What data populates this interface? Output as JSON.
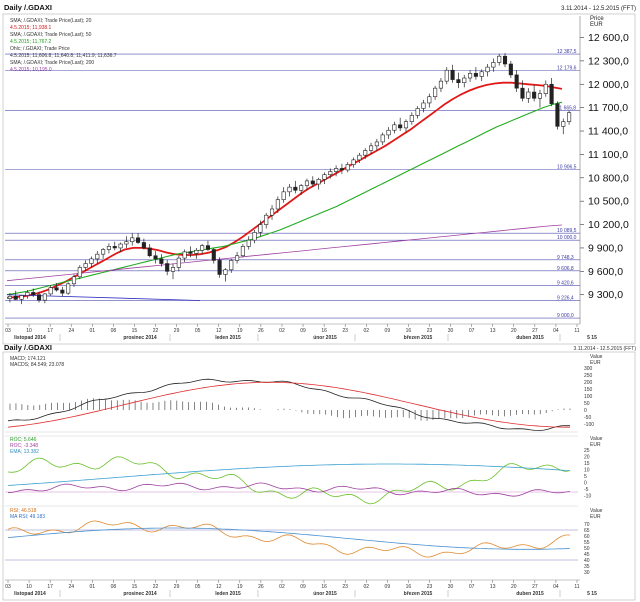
{
  "header": {
    "title": "Daily /.GDAXI",
    "range": "3.11.2014 - 12.5.2015 (FFT)",
    "price_label": "Price",
    "currency": "EUR",
    "indicator_title": "Daily /.GDAXI",
    "indicator_range": "3.11.2014 - 12.5.2015 (FFT)"
  },
  "legend": {
    "sma20_name": "SMA; /.GDAXI; Trade Price(Last); 20",
    "sma20_val": "4.5.2015; 11,938.1",
    "sma50_name": "SMA; /.GDAXI; Trade Price(Last); 50",
    "sma50_val": "4.5.2015; 11,767.2",
    "ohlc_name": "Ohlc; /.GDAXI; Trade Price",
    "ohlc_val": "4.5.2015; 11,606.8; 11,640.8; 11,411.9; 11,636.7",
    "sma200_name": "SMA; /.GDAXI; Trade Price(Last); 200",
    "sma200_val": "4.5.2015; 10,195.0"
  },
  "macd": {
    "l1": "MACD; 174.121",
    "l2": "MACDS; 84.549; 23.078",
    "axis": [
      "300",
      "250",
      "200",
      "150",
      "100",
      "50",
      "0",
      "-50",
      "-100"
    ]
  },
  "roc": {
    "l1": "ROC; 5.646",
    "l2": "ROC; -3.348",
    "l3": "EMA; 13.382",
    "axis": [
      "25",
      "20",
      "15",
      "10",
      "5",
      "0",
      "-5",
      "-10"
    ]
  },
  "rsi": {
    "l1": "RSI; 46.518",
    "l2": "MA RSI; 49.183",
    "axis": [
      "70",
      "65",
      "60",
      "55",
      "50",
      "45",
      "40",
      "35",
      "30"
    ]
  },
  "right_labels": {
    "value": "Value",
    "eur": "EUR"
  },
  "chart_data": {
    "type": "candlestick",
    "title": "Daily /.GDAXI",
    "ylabel": "Price EUR",
    "ylim": [
      8950,
      12850
    ],
    "y_ticks": [
      9300,
      9600,
      9900,
      10200,
      10500,
      10800,
      11100,
      11400,
      11700,
      12000,
      12300,
      12600
    ],
    "y_tick_labels": [
      "9 300,0",
      "9 600,0",
      "9 900,0",
      "10 200,0",
      "10 500,0",
      "10 800,0",
      "11 100,0",
      "11 400,0",
      "11 700,0",
      "12 000,0",
      "12 300,0",
      "12 600,0"
    ],
    "date_ticks": [
      "03",
      "10",
      "17",
      "24",
      "01",
      "08",
      "15",
      "22",
      "29",
      "05",
      "12",
      "19",
      "26",
      "02",
      "09",
      "16",
      "23",
      "02",
      "09",
      "16",
      "23",
      "30",
      "07",
      "13",
      "20",
      "27",
      "04",
      "11"
    ],
    "month_labels": [
      "listopad 2014",
      "prosinec 2014",
      "leden 2015",
      "únor 2015",
      "březen 2015",
      "duben 2015",
      "5 15"
    ],
    "horizontal_levels": [
      {
        "label": "12 387,5",
        "value": 12387.5
      },
      {
        "label": "12 179,6",
        "value": 12179.6
      },
      {
        "label": "11 665,8",
        "value": 11665.8
      },
      {
        "label": "10 906,5",
        "value": 10906.5
      },
      {
        "label": "10 089,5",
        "value": 10089.5
      },
      {
        "label": "10 000,0",
        "value": 10000.0
      },
      {
        "label": "9 748,3",
        "value": 9748.3
      },
      {
        "label": "9 606,8",
        "value": 9606.8
      },
      {
        "label": "9 420,6",
        "value": 9420.6
      },
      {
        "label": "9 226,4",
        "value": 9226.4
      },
      {
        "label": "9 000,0",
        "value": 9000.0
      }
    ],
    "candles": [
      [
        9250,
        9320,
        9200,
        9280
      ],
      [
        9280,
        9350,
        9230,
        9240
      ],
      [
        9240,
        9300,
        9180,
        9290
      ],
      [
        9290,
        9360,
        9250,
        9330
      ],
      [
        9330,
        9380,
        9270,
        9300
      ],
      [
        9300,
        9340,
        9200,
        9230
      ],
      [
        9230,
        9320,
        9190,
        9310
      ],
      [
        9310,
        9420,
        9290,
        9390
      ],
      [
        9390,
        9450,
        9340,
        9360
      ],
      [
        9360,
        9400,
        9280,
        9320
      ],
      [
        9320,
        9460,
        9300,
        9440
      ],
      [
        9440,
        9560,
        9400,
        9530
      ],
      [
        9530,
        9680,
        9500,
        9650
      ],
      [
        9650,
        9740,
        9600,
        9700
      ],
      [
        9700,
        9790,
        9650,
        9760
      ],
      [
        9760,
        9860,
        9700,
        9820
      ],
      [
        9820,
        9900,
        9760,
        9880
      ],
      [
        9880,
        9960,
        9830,
        9920
      ],
      [
        9920,
        9980,
        9870,
        9900
      ],
      [
        9900,
        9970,
        9850,
        9950
      ],
      [
        9950,
        10050,
        9900,
        9980
      ],
      [
        9980,
        10090,
        9930,
        10030
      ],
      [
        10030,
        10090,
        9950,
        9970
      ],
      [
        9970,
        10020,
        9880,
        9900
      ],
      [
        9900,
        9950,
        9780,
        9800
      ],
      [
        9800,
        9860,
        9700,
        9760
      ],
      [
        9760,
        9820,
        9660,
        9700
      ],
      [
        9700,
        9750,
        9550,
        9600
      ],
      [
        9600,
        9700,
        9500,
        9650
      ],
      [
        9650,
        9800,
        9600,
        9770
      ],
      [
        9770,
        9880,
        9720,
        9850
      ],
      [
        9850,
        9920,
        9780,
        9830
      ],
      [
        9830,
        9900,
        9760,
        9870
      ],
      [
        9870,
        9950,
        9820,
        9930
      ],
      [
        9930,
        9990,
        9860,
        9880
      ],
      [
        9880,
        9900,
        9700,
        9740
      ],
      [
        9740,
        9780,
        9520,
        9560
      ],
      [
        9560,
        9640,
        9470,
        9620
      ],
      [
        9620,
        9760,
        9580,
        9740
      ],
      [
        9740,
        9850,
        9700,
        9800
      ],
      [
        9800,
        9950,
        9780,
        9920
      ],
      [
        9920,
        10050,
        9880,
        10000
      ],
      [
        10000,
        10130,
        9960,
        10100
      ],
      [
        10100,
        10250,
        10050,
        10200
      ],
      [
        10200,
        10350,
        10150,
        10320
      ],
      [
        10320,
        10450,
        10260,
        10400
      ],
      [
        10400,
        10560,
        10350,
        10520
      ],
      [
        10520,
        10680,
        10480,
        10620
      ],
      [
        10620,
        10720,
        10560,
        10680
      ],
      [
        10680,
        10760,
        10600,
        10640
      ],
      [
        10640,
        10720,
        10580,
        10700
      ],
      [
        10700,
        10790,
        10640,
        10760
      ],
      [
        10760,
        10820,
        10680,
        10720
      ],
      [
        10720,
        10800,
        10650,
        10780
      ],
      [
        10780,
        10870,
        10720,
        10840
      ],
      [
        10840,
        10920,
        10790,
        10880
      ],
      [
        10880,
        10960,
        10820,
        10920
      ],
      [
        10920,
        10980,
        10850,
        10900
      ],
      [
        10900,
        11000,
        10870,
        10970
      ],
      [
        10970,
        11060,
        10930,
        11030
      ],
      [
        11030,
        11120,
        10990,
        11090
      ],
      [
        11090,
        11180,
        11040,
        11150
      ],
      [
        11150,
        11250,
        11100,
        11210
      ],
      [
        11210,
        11300,
        11150,
        11260
      ],
      [
        11260,
        11380,
        11220,
        11350
      ],
      [
        11350,
        11450,
        11300,
        11410
      ],
      [
        11410,
        11520,
        11370,
        11480
      ],
      [
        11480,
        11570,
        11400,
        11440
      ],
      [
        11440,
        11550,
        11380,
        11520
      ],
      [
        11520,
        11640,
        11480,
        11600
      ],
      [
        11600,
        11720,
        11560,
        11690
      ],
      [
        11690,
        11800,
        11640,
        11760
      ],
      [
        11760,
        11880,
        11700,
        11840
      ],
      [
        11840,
        11980,
        11800,
        11950
      ],
      [
        11950,
        12080,
        11900,
        12040
      ],
      [
        12040,
        12220,
        12000,
        12180
      ],
      [
        12180,
        12250,
        12020,
        12060
      ],
      [
        12060,
        12150,
        11950,
        12020
      ],
      [
        12020,
        12120,
        11960,
        12080
      ],
      [
        12080,
        12180,
        12030,
        12140
      ],
      [
        12140,
        12220,
        12060,
        12100
      ],
      [
        12100,
        12190,
        12040,
        12160
      ],
      [
        12160,
        12260,
        12100,
        12220
      ],
      [
        12220,
        12330,
        12160,
        12280
      ],
      [
        12280,
        12390,
        12240,
        12360
      ],
      [
        12360,
        12400,
        12220,
        12260
      ],
      [
        12260,
        12300,
        12080,
        12120
      ],
      [
        12120,
        12180,
        11900,
        11950
      ],
      [
        11950,
        12050,
        11780,
        11820
      ],
      [
        11820,
        11950,
        11760,
        11900
      ],
      [
        11900,
        11990,
        11780,
        11820
      ],
      [
        11820,
        11930,
        11700,
        11880
      ],
      [
        11880,
        12050,
        11840,
        12000
      ],
      [
        12000,
        12080,
        11720,
        11750
      ],
      [
        11750,
        11780,
        11420,
        11460
      ],
      [
        11460,
        11560,
        11360,
        11520
      ],
      [
        11520,
        11660,
        11480,
        11636
      ]
    ],
    "series": [
      {
        "name": "SMA; /.GDAXI; Trade Price(Last); 20",
        "color": "#e01818",
        "start": 0,
        "values": [
          9260,
          9270,
          9280,
          9300,
          9330,
          9370,
          9420,
          9470,
          9530,
          9590,
          9650,
          9710,
          9770,
          9830,
          9880,
          9900,
          9900,
          9890,
          9870,
          9840,
          9820,
          9810,
          9810,
          9820,
          9840,
          9870,
          9910,
          9970,
          10040,
          10120,
          10200,
          10280,
          10360,
          10440,
          10520,
          10600,
          10670,
          10730,
          10790,
          10850,
          10910,
          10970,
          11030,
          11090,
          11150,
          11210,
          11280,
          11350,
          11420,
          11500,
          11580,
          11660,
          11740,
          11810,
          11870,
          11920,
          11960,
          11990,
          12010,
          12020,
          12020,
          12010,
          12000,
          11990,
          11980,
          11960,
          11940
        ]
      },
      {
        "name": "SMA; /.GDAXI; Trade Price(Last); 50",
        "color": "#22aa22",
        "start": 0,
        "values": [
          9300,
          9320,
          9340,
          9370,
          9400,
          9430,
          9460,
          9490,
          9520,
          9550,
          9580,
          9610,
          9640,
          9670,
          9700,
          9730,
          9760,
          9790,
          9820,
          9840,
          9860,
          9880,
          9900,
          9920,
          9950,
          9980,
          10010,
          10050,
          10090,
          10130,
          10180,
          10230,
          10280,
          10330,
          10380,
          10430,
          10490,
          10550,
          10610,
          10670,
          10730,
          10790,
          10850,
          10910,
          10970,
          11030,
          11090,
          11150,
          11210,
          11270,
          11330,
          11390,
          11450,
          11500,
          11550,
          11600,
          11650,
          11700,
          11740,
          11770
        ]
      },
      {
        "name": "SMA; /.GDAXI; Trade Price(Last); 200",
        "color": "#a040a0",
        "start": 0,
        "values": [
          9480,
          9500,
          9520,
          9540,
          9560,
          9580,
          9600,
          9620,
          9640,
          9660,
          9680,
          9700,
          9720,
          9740,
          9760,
          9780,
          9800,
          9820,
          9840,
          9860,
          9880,
          9900,
          9920,
          9940,
          9960,
          9980,
          10000,
          10020,
          10040,
          10060,
          10080,
          10100,
          10120,
          10140,
          10160,
          10180,
          10195
        ]
      }
    ],
    "grid": false
  }
}
